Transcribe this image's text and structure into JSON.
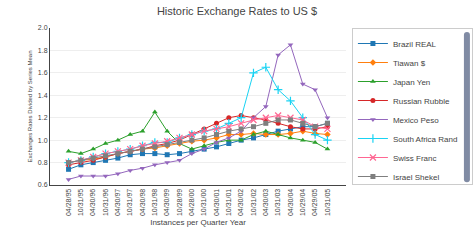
{
  "chart_data": {
    "type": "line",
    "title": "Historic Exchange Rates to US $",
    "x_label": "Instances per Quarter Year",
    "y_label": "Exchanges Rates Divided by Series Mean",
    "categories": [
      "04/28/95",
      "10/31/95",
      "04/30/96",
      "10/31/96",
      "04/30/97",
      "10/31/97",
      "04/30/98",
      "10/31/98",
      "04/30/99",
      "10/28/99",
      "04/28/00",
      "10/31/00",
      "04/30/01",
      "10/31/01",
      "04/30/02",
      "10/31/02",
      "04/30/03",
      "10/31/03",
      "04/30/04",
      "10/29/04",
      "04/29/05",
      "10/31/05"
    ],
    "ylim": [
      0.6,
      2.0
    ],
    "yticks": [
      0.6,
      0.8,
      {
        "value": 1.0,
        "label": "1.0"
      },
      1.2,
      1.4,
      1.6,
      1.8,
      {
        "value": 2.0,
        "label": "2.0"
      }
    ],
    "grid": "y",
    "legend": "right",
    "series": [
      {
        "name": "Brazil REAL",
        "marker": "square",
        "values": [
          0.74,
          0.78,
          0.8,
          0.82,
          0.84,
          0.87,
          0.88,
          0.88,
          0.87,
          0.88,
          0.9,
          0.92,
          0.94,
          0.97,
          1.0,
          1.02,
          1.05,
          1.08,
          1.1,
          1.12,
          1.12,
          1.15
        ]
      },
      {
        "name": "Tiawan $",
        "marker": "diamond",
        "values": [
          0.8,
          0.82,
          0.83,
          0.85,
          0.88,
          0.9,
          0.92,
          0.93,
          0.95,
          0.97,
          0.99,
          1.0,
          1.02,
          1.05,
          1.05,
          1.06,
          1.05,
          1.05,
          1.06,
          1.08,
          1.06,
          1.05
        ]
      },
      {
        "name": "Japan Yen",
        "marker": "triangle-up",
        "values": [
          0.9,
          0.88,
          0.92,
          0.97,
          1.0,
          1.05,
          1.08,
          1.25,
          1.08,
          0.97,
          0.92,
          0.95,
          0.98,
          1.0,
          1.0,
          1.05,
          1.08,
          1.05,
          1.02,
          1.0,
          0.98,
          0.92
        ]
      },
      {
        "name": "Russian Rubble",
        "marker": "circle",
        "values": [
          0.78,
          0.8,
          0.82,
          0.85,
          0.88,
          0.9,
          0.92,
          0.95,
          0.97,
          1.0,
          1.05,
          1.1,
          1.15,
          1.2,
          1.22,
          1.2,
          1.18,
          1.15,
          1.12,
          1.1,
          1.1,
          1.12
        ]
      },
      {
        "name": "Mexico Peso",
        "marker": "triangle-down",
        "values": [
          0.65,
          0.68,
          0.68,
          0.68,
          0.7,
          0.73,
          0.75,
          0.78,
          0.8,
          0.82,
          0.88,
          0.92,
          0.98,
          1.02,
          1.08,
          1.2,
          1.3,
          1.76,
          1.85,
          1.5,
          1.45,
          1.2
        ]
      },
      {
        "name": "South Africa Rand",
        "marker": "plus",
        "values": [
          0.8,
          0.82,
          0.85,
          0.88,
          0.9,
          0.92,
          0.95,
          0.98,
          0.98,
          1.02,
          1.05,
          1.08,
          1.1,
          1.15,
          1.2,
          1.6,
          1.65,
          1.45,
          1.35,
          1.2,
          1.05,
          1.0
        ]
      },
      {
        "name": "Swiss Franc",
        "marker": "x",
        "values": [
          0.8,
          0.82,
          0.85,
          0.88,
          0.9,
          0.92,
          0.95,
          0.97,
          0.99,
          1.02,
          1.05,
          1.08,
          1.1,
          1.12,
          1.15,
          1.18,
          1.2,
          1.22,
          1.2,
          1.18,
          1.12,
          1.1
        ]
      },
      {
        "name": "Israel Shekel",
        "marker": "square",
        "values": [
          0.8,
          0.82,
          0.84,
          0.86,
          0.88,
          0.9,
          0.92,
          0.94,
          0.96,
          0.98,
          1.0,
          1.02,
          1.05,
          1.08,
          1.1,
          1.12,
          1.15,
          1.18,
          1.18,
          1.15,
          1.12,
          1.15
        ]
      }
    ]
  }
}
